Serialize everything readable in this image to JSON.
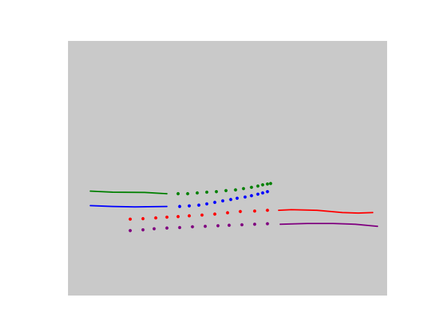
{
  "chart_data": {
    "type": "line",
    "title": "",
    "xlabel": "",
    "ylabel": "",
    "xlim": [
      0,
      100
    ],
    "ylim": [
      0,
      100
    ],
    "grid": false,
    "axes_visible": false,
    "background_color": "#c9c9c9",
    "series": [
      {
        "name": "green-solid",
        "color": "#008000",
        "style": "line",
        "x": [
          7,
          14,
          24,
          31
        ],
        "y": [
          41.0,
          40.6,
          40.5,
          40.0
        ]
      },
      {
        "name": "green-dotted",
        "color": "#008000",
        "style": "markers",
        "x": [
          34.5,
          37.5,
          40.5,
          43.5,
          46.5,
          49.5,
          52.5,
          55.0,
          57.5,
          59.5,
          61.0,
          62.5,
          63.5
        ],
        "y": [
          40.0,
          40.0,
          40.3,
          40.6,
          40.8,
          41.2,
          41.5,
          42.0,
          42.5,
          43.0,
          43.5,
          43.8,
          44.0
        ]
      },
      {
        "name": "blue-solid",
        "color": "#0000ff",
        "style": "line",
        "x": [
          7,
          14,
          21,
          31
        ],
        "y": [
          35.3,
          35.0,
          34.8,
          35.0
        ]
      },
      {
        "name": "blue-dotted",
        "color": "#0000ff",
        "style": "markers",
        "x": [
          35,
          38,
          41,
          43.5,
          46,
          48.5,
          51,
          53,
          55.5,
          57.5,
          59.5,
          61,
          62.5
        ],
        "y": [
          35.0,
          35.2,
          35.5,
          36.0,
          36.6,
          37.2,
          37.7,
          38.2,
          38.7,
          39.2,
          39.8,
          40.3,
          40.8
        ]
      },
      {
        "name": "red-dotted",
        "color": "#ff0000",
        "style": "markers",
        "x": [
          19.5,
          23.5,
          27.5,
          31,
          34.5,
          38,
          42,
          46,
          50,
          54,
          58.5,
          62.5
        ],
        "y": [
          30.0,
          30.2,
          30.5,
          30.8,
          31.0,
          31.3,
          31.6,
          32.0,
          32.5,
          33.0,
          33.2,
          33.5
        ]
      },
      {
        "name": "red-solid",
        "color": "#ff0000",
        "style": "line",
        "x": [
          66,
          70,
          78,
          86,
          91,
          95.5
        ],
        "y": [
          33.5,
          33.7,
          33.5,
          32.6,
          32.4,
          32.6
        ]
      },
      {
        "name": "purple-dotted",
        "color": "#800080",
        "style": "markers",
        "x": [
          19.5,
          23.5,
          27,
          31,
          35,
          39,
          43,
          47,
          50.5,
          54.5,
          58.5,
          62.5
        ],
        "y": [
          25.5,
          25.8,
          26.2,
          26.5,
          26.7,
          27.0,
          27.2,
          27.4,
          27.6,
          27.8,
          28.0,
          28.2
        ]
      },
      {
        "name": "purple-solid",
        "color": "#800080",
        "style": "line",
        "x": [
          66.5,
          75,
          83,
          90,
          97
        ],
        "y": [
          28.0,
          28.3,
          28.3,
          28.0,
          27.2
        ]
      }
    ]
  }
}
